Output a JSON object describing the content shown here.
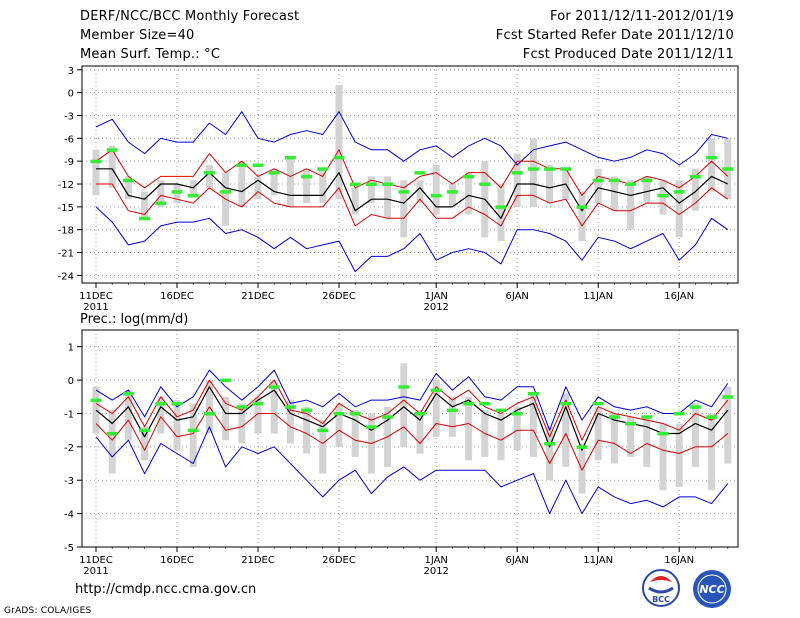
{
  "header": {
    "title": "DERF/NCC/BCC Monthly Forecast",
    "member": "Member Size=40",
    "variable": "Mean Surf. Temp.: °C",
    "period": "For 2011/12/11-2012/01/19",
    "started": "Fcst Started Refer Date 2011/12/10",
    "produced": "Fcst Produced Date 2011/12/11"
  },
  "footer": {
    "url": "http://cmdp.ncc.cma.gov.cn",
    "grads": "GrADS: COLA/IGES",
    "logo_bcc": "BCC",
    "logo_ncc": "NCC"
  },
  "colors": {
    "max_line": "#0000dd",
    "spread_line": "#dd0000",
    "mean_line": "#000000",
    "obs_marker": "#33ee33",
    "bar": "#d3d3d3",
    "grid": "#888888"
  },
  "x_axis": {
    "ticks": [
      {
        "day": 0,
        "label": "11DEC",
        "sub": "2011"
      },
      {
        "day": 5,
        "label": "16DEC",
        "sub": ""
      },
      {
        "day": 10,
        "label": "21DEC",
        "sub": ""
      },
      {
        "day": 15,
        "label": "26DEC",
        "sub": ""
      },
      {
        "day": 21,
        "label": "1JAN",
        "sub": "2012"
      },
      {
        "day": 26,
        "label": "6JAN",
        "sub": ""
      },
      {
        "day": 31,
        "label": "11JAN",
        "sub": ""
      },
      {
        "day": 36,
        "label": "16JAN",
        "sub": ""
      }
    ]
  },
  "chart_data": [
    {
      "type": "line",
      "title": "Mean Surf. Temp.: °C",
      "ylabel": "°C",
      "ylim": [
        -25,
        3.5
      ],
      "yticks": [
        3,
        0,
        -3,
        -6,
        -9,
        -12,
        -15,
        -18,
        -21,
        -24
      ],
      "x": [
        0,
        1,
        2,
        3,
        4,
        5,
        6,
        7,
        8,
        9,
        10,
        11,
        12,
        13,
        14,
        15,
        16,
        17,
        18,
        19,
        20,
        21,
        22,
        23,
        24,
        25,
        26,
        27,
        28,
        29,
        30,
        31,
        32,
        33,
        34,
        35,
        36,
        37,
        38,
        39
      ],
      "series": [
        {
          "name": "max",
          "values": [
            -4.5,
            -3.5,
            -6.5,
            -8,
            -6,
            -6.5,
            -6.5,
            -4,
            -5.5,
            -2.5,
            -6,
            -6.5,
            -5.5,
            -5,
            -5.5,
            -2.5,
            -6.5,
            -7.5,
            -7.5,
            -9,
            -7.5,
            -7,
            -8.5,
            -7,
            -6,
            -7,
            -9.5,
            -7.5,
            -7,
            -6.5,
            -7.5,
            -8.5,
            -9,
            -8.5,
            -7.5,
            -8,
            -9.5,
            -8,
            -5.5,
            -6
          ]
        },
        {
          "name": "upper",
          "values": [
            -9,
            -7.5,
            -11,
            -12.5,
            -11,
            -11,
            -11,
            -8,
            -10.5,
            -9,
            -11,
            -10,
            -11,
            -10,
            -11,
            -7.5,
            -12.5,
            -11.5,
            -12,
            -12.5,
            -11,
            -10.5,
            -12,
            -10.5,
            -10.5,
            -12.5,
            -9,
            -9,
            -10,
            -10,
            -13.5,
            -11,
            -11.5,
            -12,
            -11,
            -11.5,
            -12.5,
            -11,
            -9,
            -11
          ]
        },
        {
          "name": "mean",
          "values": [
            -10,
            -10,
            -13.5,
            -14,
            -12,
            -12,
            -12.5,
            -10.5,
            -12.5,
            -13,
            -11.5,
            -13,
            -13.5,
            -13.5,
            -13.5,
            -10.5,
            -15.5,
            -14,
            -14,
            -14.5,
            -12.5,
            -15,
            -15,
            -13.5,
            -14,
            -16.5,
            -12,
            -12,
            -12.5,
            -12,
            -15.5,
            -12.5,
            -13,
            -13.5,
            -13,
            -12.5,
            -14.5,
            -13,
            -11,
            -12
          ]
        },
        {
          "name": "lower",
          "values": [
            -12,
            -12,
            -15.5,
            -16,
            -13.5,
            -14,
            -14.5,
            -12.5,
            -14,
            -15,
            -13,
            -14.5,
            -15,
            -15,
            -15,
            -12.5,
            -17.5,
            -16,
            -16.5,
            -16.5,
            -14,
            -16.5,
            -16.5,
            -15,
            -16,
            -17.5,
            -13.5,
            -13.5,
            -14.5,
            -14,
            -17.5,
            -14.5,
            -15.5,
            -15.5,
            -14.5,
            -14.5,
            -16,
            -14.5,
            -12.5,
            -14
          ]
        },
        {
          "name": "min",
          "values": [
            -15,
            -17,
            -20,
            -19.5,
            -17.5,
            -17,
            -17,
            -16.5,
            -18.5,
            -18,
            -19,
            -20.5,
            -19,
            -20.5,
            -20,
            -19.5,
            -23.5,
            -21.5,
            -21.5,
            -20.5,
            -18.5,
            -22,
            -21,
            -20.5,
            -21,
            -22.5,
            -18,
            -18,
            -18.5,
            -19.5,
            -22,
            -19,
            -19.5,
            -20.5,
            -19.5,
            -18.5,
            -22,
            -20,
            -16.5,
            -18
          ]
        },
        {
          "name": "bar_top",
          "values": [
            -7.5,
            -7,
            -11,
            -13,
            -11.5,
            -12,
            -11.5,
            -9.5,
            -10.5,
            -9,
            -11,
            -10,
            -8.5,
            -10,
            -10,
            1,
            -12.5,
            -11,
            -11,
            -11.5,
            -11.5,
            -9.5,
            -12,
            -10.5,
            -9,
            -12,
            -8,
            -6,
            -9.5,
            -10,
            -13,
            -10,
            -11,
            -11.5,
            -11,
            -11.5,
            -11.5,
            -10,
            -6,
            -6
          ]
        },
        {
          "name": "bar_bottom",
          "values": [
            -13.5,
            -12.5,
            -14,
            -16.5,
            -15,
            -14.5,
            -13.5,
            -12.5,
            -17.5,
            -15,
            -14,
            -13.5,
            -15,
            -14.5,
            -14.5,
            -14,
            -16,
            -14.5,
            -16.5,
            -19,
            -14.5,
            -16,
            -15,
            -16,
            -19,
            -19.5,
            -15,
            -15,
            -14.5,
            -14,
            -19.5,
            -14.5,
            -15.5,
            -18,
            -14.5,
            -16,
            -19,
            -15.5,
            -13,
            -14
          ]
        },
        {
          "name": "observed",
          "values": [
            -9,
            -7.5,
            -11.5,
            -16.5,
            -14.5,
            -13,
            -13.5,
            -10.5,
            -13,
            -9.5,
            -9.5,
            -10.5,
            -8.5,
            -11,
            -10,
            -8.5,
            -12,
            -12,
            -12,
            -13,
            -10.5,
            -13.5,
            -13,
            -11,
            -12,
            -15,
            -10.5,
            -10,
            -10,
            -10,
            -15,
            -11.5,
            -11.5,
            -12,
            -11.5,
            -13.5,
            -13,
            -11,
            -8.5,
            -10
          ]
        }
      ]
    },
    {
      "type": "line",
      "title": "Prec.: log(mm/d)",
      "ylabel": "log(mm/d)",
      "ylim": [
        -5,
        1.5
      ],
      "yticks": [
        1,
        0,
        -1,
        -2,
        -3,
        -4,
        -5
      ],
      "x": [
        0,
        1,
        2,
        3,
        4,
        5,
        6,
        7,
        8,
        9,
        10,
        11,
        12,
        13,
        14,
        15,
        16,
        17,
        18,
        19,
        20,
        21,
        22,
        23,
        24,
        25,
        26,
        27,
        28,
        29,
        30,
        31,
        32,
        33,
        34,
        35,
        36,
        37,
        38,
        39
      ],
      "series": [
        {
          "name": "max",
          "values": [
            -0.3,
            -0.6,
            -0.3,
            -1.1,
            -0.2,
            -0.8,
            -0.5,
            0.3,
            -0.2,
            -0.6,
            -0.2,
            0.3,
            -0.7,
            -0.6,
            -0.8,
            -0.4,
            -0.8,
            -0.6,
            -0.6,
            -0.5,
            -0.6,
            0.2,
            -0.3,
            0.1,
            -0.5,
            -0.6,
            -0.2,
            -0.2,
            -1.5,
            -0.2,
            -1.2,
            -0.5,
            -0.8,
            -0.9,
            -0.8,
            -1.0,
            -1.0,
            -0.6,
            -0.8,
            -0.1
          ]
        },
        {
          "name": "upper",
          "values": [
            -0.7,
            -1.0,
            -0.5,
            -1.4,
            -0.5,
            -1.1,
            -0.9,
            0.0,
            -0.7,
            -0.9,
            -0.5,
            0.0,
            -0.9,
            -1.0,
            -1.3,
            -0.7,
            -1.0,
            -1.2,
            -1.0,
            -0.6,
            -1.0,
            -0.2,
            -0.6,
            -0.3,
            -0.8,
            -1.0,
            -0.7,
            -0.5,
            -1.7,
            -0.6,
            -1.8,
            -0.8,
            -1.0,
            -1.1,
            -1.2,
            -1.3,
            -1.5,
            -1.0,
            -1.2,
            -0.6
          ]
        },
        {
          "name": "mean",
          "values": [
            -0.9,
            -1.3,
            -0.8,
            -1.7,
            -0.8,
            -1.2,
            -1.1,
            -0.2,
            -1.0,
            -1.0,
            -0.6,
            -0.3,
            -1.0,
            -1.2,
            -1.4,
            -1.0,
            -1.2,
            -1.5,
            -1.2,
            -0.8,
            -1.2,
            -0.4,
            -0.8,
            -0.6,
            -1.0,
            -1.2,
            -0.9,
            -0.7,
            -2.0,
            -0.8,
            -2.1,
            -1.0,
            -1.2,
            -1.3,
            -1.4,
            -1.6,
            -1.6,
            -1.3,
            -1.5,
            -0.9
          ]
        },
        {
          "name": "lower",
          "values": [
            -1.3,
            -1.8,
            -1.2,
            -2.1,
            -1.1,
            -1.7,
            -1.6,
            -0.8,
            -1.5,
            -1.4,
            -1.0,
            -1.0,
            -1.4,
            -1.6,
            -1.9,
            -1.5,
            -1.8,
            -1.9,
            -1.7,
            -1.4,
            -1.9,
            -1.3,
            -1.4,
            -1.3,
            -1.6,
            -1.8,
            -1.5,
            -1.5,
            -2.5,
            -1.6,
            -2.7,
            -1.8,
            -1.9,
            -2.2,
            -1.9,
            -2.1,
            -2.2,
            -2.0,
            -2.0,
            -1.6
          ]
        },
        {
          "name": "min",
          "values": [
            -1.7,
            -2.3,
            -1.8,
            -2.8,
            -1.9,
            -2.2,
            -2.5,
            -1.4,
            -2.6,
            -2.0,
            -2.2,
            -2.0,
            -2.5,
            -3.0,
            -3.5,
            -3.0,
            -2.7,
            -3.4,
            -2.9,
            -2.6,
            -3.0,
            -2.7,
            -2.7,
            -2.7,
            -2.7,
            -3.2,
            -3.0,
            -2.8,
            -4.0,
            -3.0,
            -4.0,
            -3.2,
            -3.5,
            -3.7,
            -3.6,
            -3.8,
            -3.5,
            -3.5,
            -3.7,
            -3.1
          ]
        },
        {
          "name": "bar_top",
          "values": [
            -0.2,
            -0.9,
            -0.3,
            -1.4,
            -0.5,
            -0.6,
            -0.7,
            0.0,
            -0.5,
            -0.7,
            -0.5,
            0.0,
            -0.6,
            -0.8,
            -1.2,
            -0.7,
            -0.9,
            -1.0,
            -0.8,
            0.5,
            -0.9,
            0.0,
            -0.5,
            -0.5,
            -0.9,
            -1.0,
            -0.8,
            -0.4,
            -1.4,
            -0.4,
            -1.9,
            -0.8,
            -1.0,
            -1.1,
            -1.1,
            -1.3,
            -1.3,
            -0.7,
            -1.0,
            -0.2
          ]
        },
        {
          "name": "bar_bottom",
          "values": [
            -1.6,
            -2.8,
            -1.8,
            -2.4,
            -1.6,
            -2.1,
            -2.6,
            -1.6,
            -1.8,
            -1.9,
            -1.6,
            -1.6,
            -1.9,
            -2.2,
            -2.8,
            -2.0,
            -2.3,
            -2.8,
            -2.6,
            -2.0,
            -2.2,
            -1.7,
            -1.7,
            -2.4,
            -2.3,
            -2.4,
            -2.1,
            -2.3,
            -3.0,
            -2.6,
            -3.4,
            -2.4,
            -2.5,
            -2.3,
            -2.6,
            -3.3,
            -3.2,
            -2.6,
            -3.3,
            -2.5
          ]
        },
        {
          "name": "observed",
          "values": [
            -0.6,
            -1.6,
            -0.4,
            -1.5,
            -0.7,
            -0.7,
            -1.5,
            -1.0,
            0.0,
            -0.8,
            -0.7,
            -0.2,
            -0.8,
            -0.9,
            -1.5,
            -1.0,
            -1.0,
            -1.4,
            -1.1,
            -0.2,
            -1.0,
            -0.3,
            -0.9,
            -0.7,
            -0.7,
            -0.9,
            -1.0,
            -0.4,
            -1.9,
            -0.7,
            -2.0,
            -0.7,
            -1.1,
            -1.3,
            -1.1,
            -1.6,
            -1.0,
            -0.8,
            -1.1,
            -0.5
          ]
        }
      ]
    }
  ]
}
